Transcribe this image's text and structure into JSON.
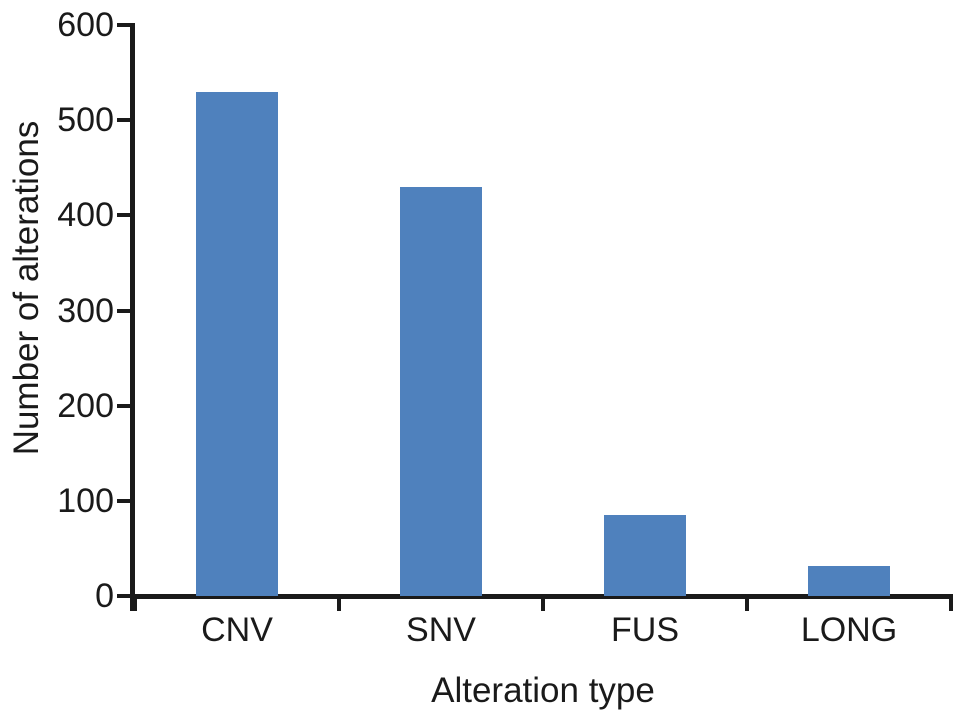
{
  "chart_data": {
    "type": "bar",
    "categories": [
      "CNV",
      "SNV",
      "FUS",
      "LONG"
    ],
    "values": [
      530,
      430,
      85,
      32
    ],
    "title": "",
    "xlabel": "Alteration type",
    "ylabel": "Number of alterations",
    "ylim": [
      0,
      600
    ],
    "yticks": [
      0,
      100,
      200,
      300,
      400,
      500,
      600
    ],
    "bar_color": "#4F81BD",
    "axis_color": "#1a1a1a",
    "grid": false,
    "legend": false
  }
}
